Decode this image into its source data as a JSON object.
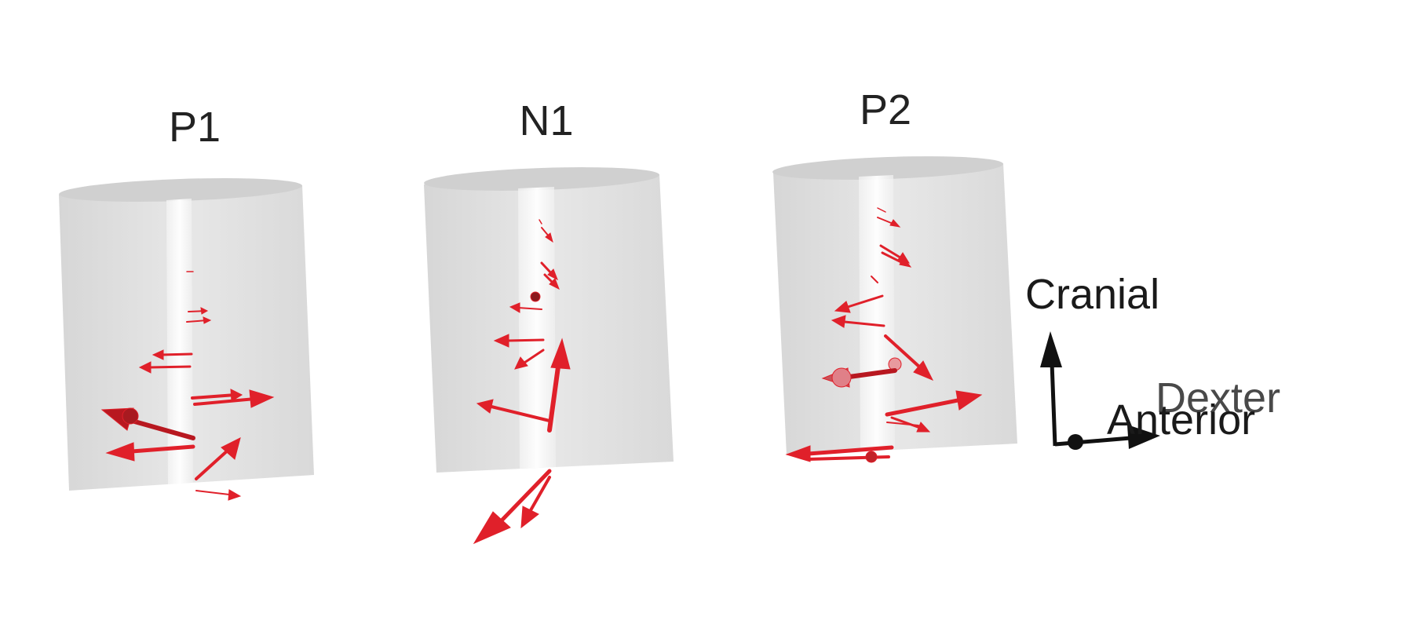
{
  "panels": [
    {
      "id": "p1",
      "title": "P1"
    },
    {
      "id": "n1",
      "title": "N1"
    },
    {
      "id": "p2",
      "title": "P2"
    }
  ],
  "orientation_axes": {
    "cranial": "Cranial",
    "dexter": "Dexter",
    "anterior": "Anterior"
  },
  "colors": {
    "arrow": "#e0202a",
    "arrow_dark": "#b81820",
    "cylinder": "#d6d6d6",
    "axis": "#111111"
  }
}
